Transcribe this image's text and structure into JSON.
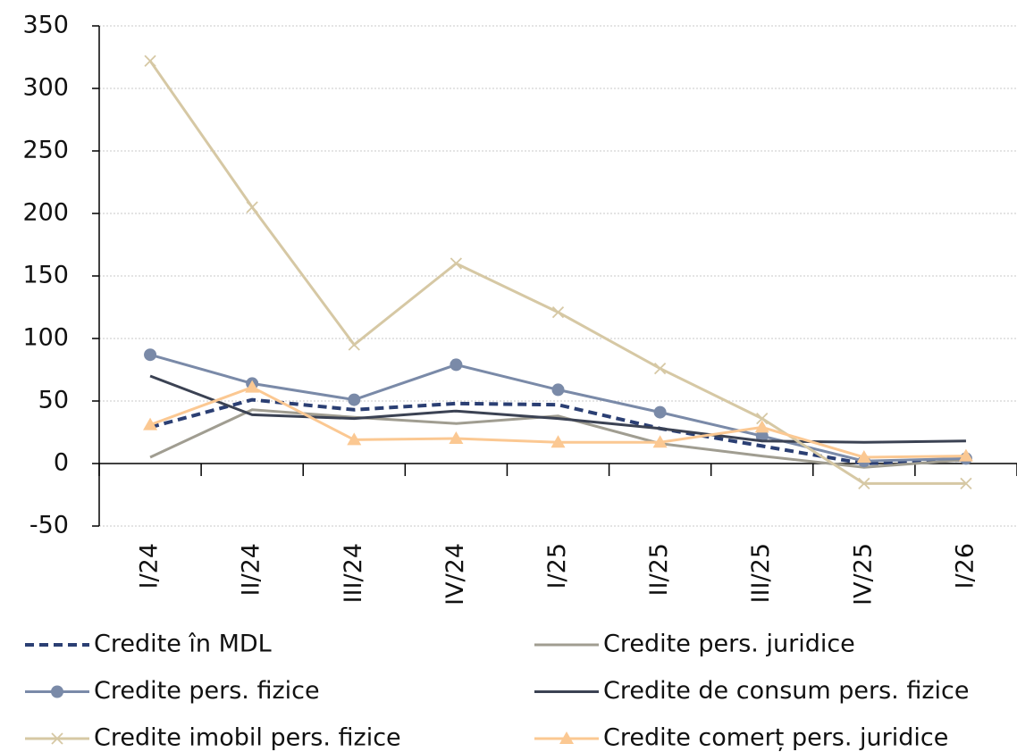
{
  "chart_data": {
    "type": "line",
    "categories": [
      "I/24",
      "II/24",
      "III/24",
      "IV/24",
      "I/25",
      "II/25",
      "III/25",
      "IV/25",
      "I/26"
    ],
    "series": [
      {
        "name": "Credite în MDL",
        "color": "#2b3f73",
        "dash": true,
        "values": [
          29,
          51,
          43,
          48,
          47,
          28,
          14,
          0,
          3
        ]
      },
      {
        "name": "Credite pers. juridice",
        "color": "#a09d91",
        "values": [
          5,
          43,
          37,
          32,
          38,
          16,
          6,
          -3,
          3
        ]
      },
      {
        "name": "Credite pers. fizice",
        "color": "#7a8aa8",
        "marker": "circle",
        "values": [
          87,
          64,
          51,
          79,
          59,
          41,
          22,
          2,
          4
        ]
      },
      {
        "name": "Credite de consum pers. fizice",
        "color": "#3b4253",
        "values": [
          70,
          39,
          36,
          42,
          36,
          28,
          18,
          17,
          18
        ]
      },
      {
        "name": "Credite imobil pers. fizice",
        "color": "#d6c8a4",
        "marker": "x",
        "values": [
          322,
          205,
          95,
          160,
          121,
          76,
          36,
          -16,
          -16
        ]
      },
      {
        "name": "Credite comerț pers. juridice",
        "color": "#fbc892",
        "marker": "triangle",
        "values": [
          31,
          61,
          19,
          20,
          17,
          17,
          29,
          5,
          6
        ]
      }
    ],
    "ylim": [
      -50,
      350
    ],
    "yticks": [
      -50,
      0,
      50,
      100,
      150,
      200,
      250,
      300,
      350
    ],
    "grid": true
  }
}
